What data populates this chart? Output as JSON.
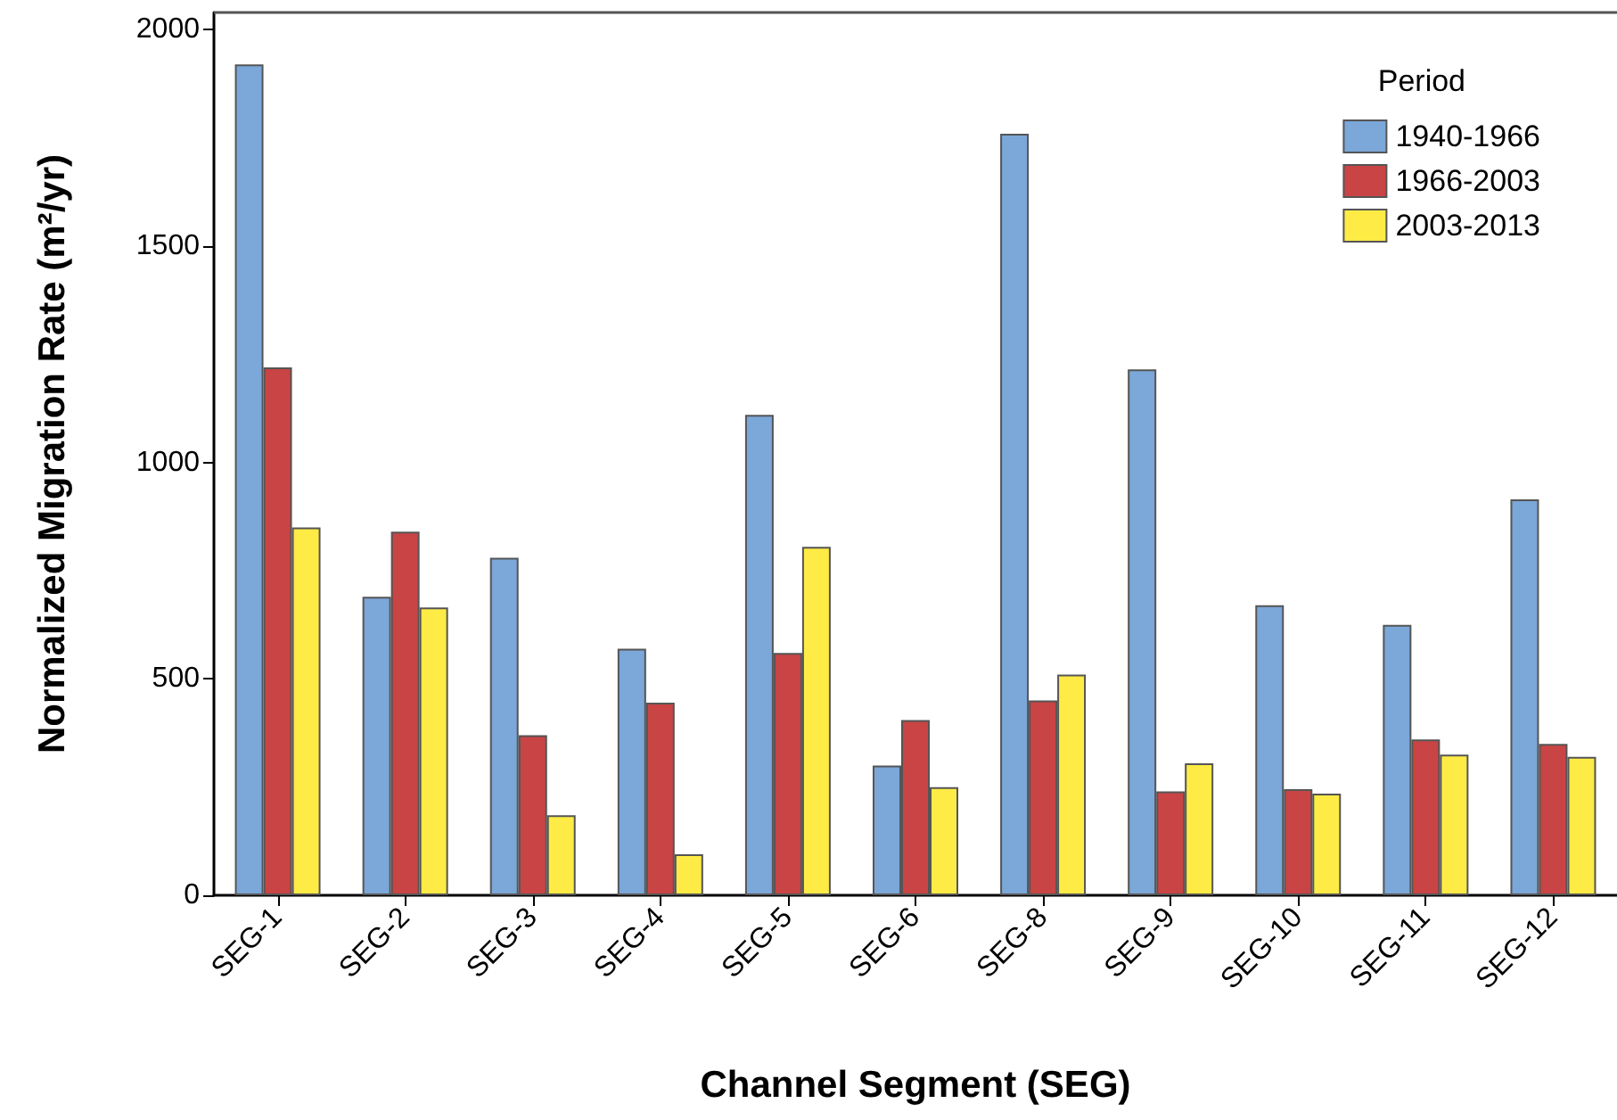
{
  "chart_data": {
    "type": "bar",
    "xlabel": "Channel Segment (SEG)",
    "ylabel": "Normalized Migration Rate (m²/yr)",
    "legend_title": "Period",
    "legend": "top right",
    "grid": false,
    "categories": [
      "SEG-1",
      "SEG-2",
      "SEG-3",
      "SEG-4",
      "SEG-5",
      "SEG-6",
      "SEG-8",
      "SEG-9",
      "SEG-10",
      "SEG-11",
      "SEG-12"
    ],
    "ylim": [
      0,
      2040
    ],
    "yticks": [
      0,
      500,
      1000,
      1500,
      2000
    ],
    "series": [
      {
        "name": "1940-1966",
        "color": "#7ba7d9",
        "values": [
          1920,
          690,
          780,
          570,
          1110,
          300,
          1760,
          1215,
          670,
          625,
          915
        ]
      },
      {
        "name": "1966-2003",
        "color": "#c94444",
        "values": [
          1220,
          840,
          370,
          445,
          560,
          405,
          450,
          240,
          245,
          360,
          350
        ]
      },
      {
        "name": "2003-2013",
        "color": "#ffeb45",
        "values": [
          850,
          665,
          185,
          95,
          805,
          250,
          510,
          305,
          235,
          325,
          320
        ]
      }
    ]
  }
}
